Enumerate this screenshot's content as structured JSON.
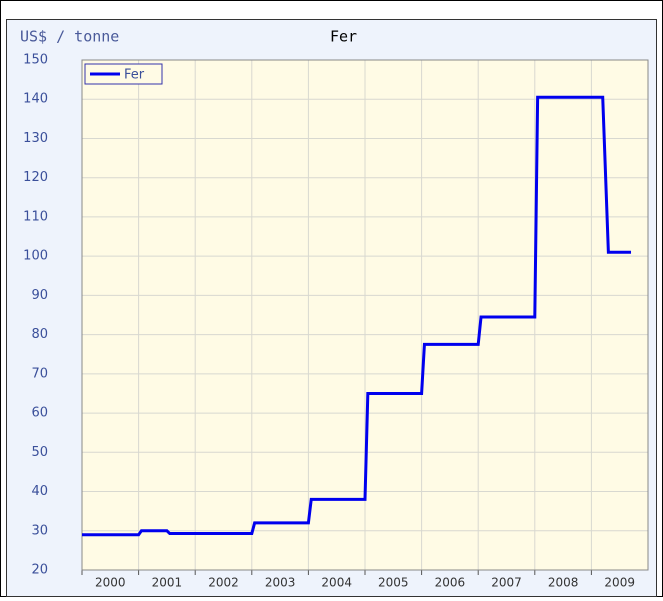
{
  "chart_data": {
    "type": "line",
    "title": "Fer",
    "y_label": "US$ / tonne",
    "x": [
      2000,
      2001,
      2001.05,
      2001.5,
      2001.55,
      2003,
      2003.05,
      2004,
      2004.05,
      2005,
      2005.05,
      2006,
      2006.05,
      2007,
      2007.05,
      2008,
      2008.05,
      2009.2,
      2009.3,
      2009.7
    ],
    "series": [
      {
        "name": "Fer",
        "color": "#0000ee",
        "values": [
          29,
          29,
          30,
          30,
          29.3,
          29.3,
          32,
          32,
          38,
          38,
          65,
          65,
          77.5,
          77.5,
          84.5,
          84.5,
          140.5,
          140.5,
          101,
          101
        ]
      }
    ],
    "xlim": [
      2000,
      2010
    ],
    "xticks": [
      2000,
      2001,
      2002,
      2003,
      2004,
      2005,
      2006,
      2007,
      2008,
      2009
    ],
    "ylim": [
      20,
      150
    ],
    "yticks": [
      20,
      30,
      40,
      50,
      60,
      70,
      80,
      90,
      100,
      110,
      120,
      130,
      140,
      150
    ],
    "grid": true,
    "legend": "top-left"
  }
}
